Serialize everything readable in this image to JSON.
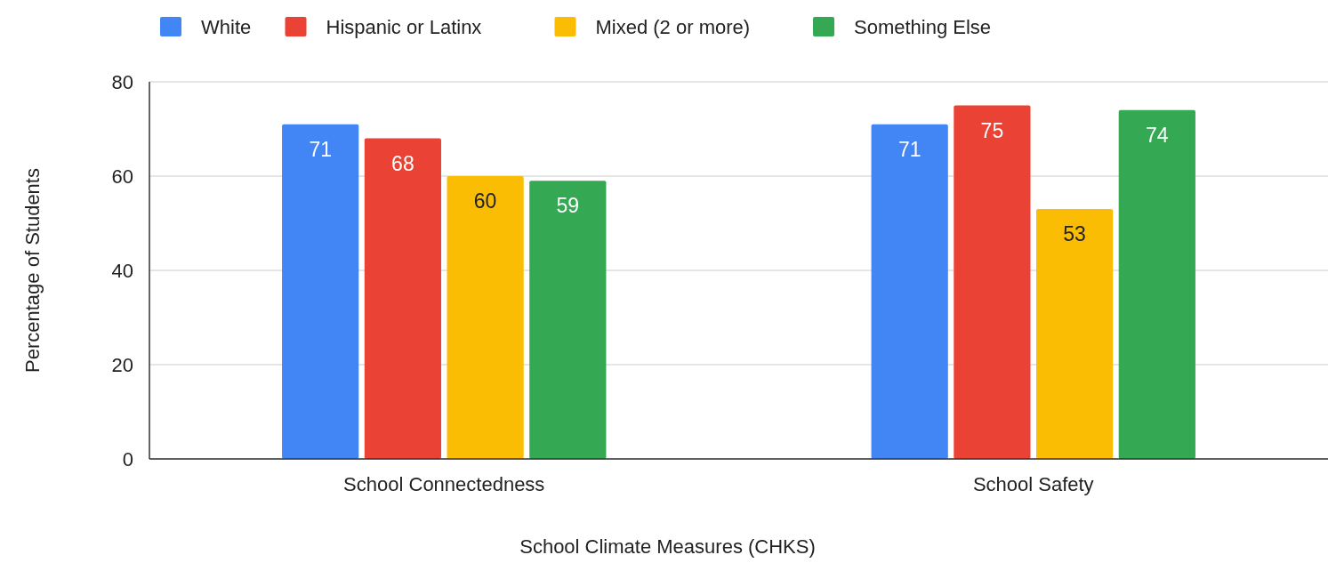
{
  "chart_data": {
    "type": "bar",
    "xlabel": "School Climate Measures (CHKS)",
    "ylabel": "Percentage of Students",
    "categories": [
      "School Connectedness",
      "School Safety"
    ],
    "series": [
      {
        "name": "White",
        "color": "#4285f4",
        "values": [
          71,
          71
        ]
      },
      {
        "name": "Hispanic or Latinx",
        "color": "#ea4335",
        "values": [
          68,
          75
        ]
      },
      {
        "name": "Mixed (2 or more)",
        "color": "#fbbc04",
        "values": [
          60,
          53
        ]
      },
      {
        "name": "Something Else",
        "color": "#34a853",
        "values": [
          59,
          74
        ]
      }
    ],
    "ylim": [
      0,
      80
    ],
    "yticks": [
      0,
      20,
      40,
      60,
      80
    ],
    "grid": "y",
    "legend": "top",
    "data_labels": true
  }
}
